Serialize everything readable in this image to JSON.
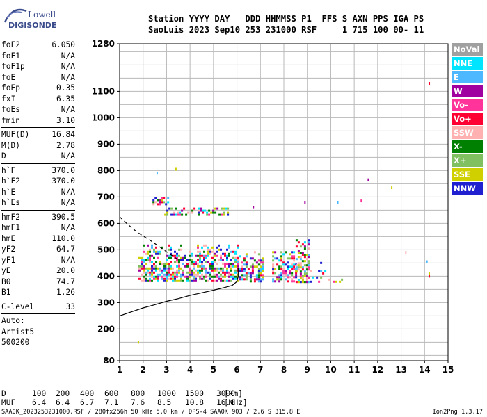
{
  "logo": {
    "line1": "Lowell",
    "line2": "DIGISONDE"
  },
  "header": {
    "line1": "Station YYYY DAY   DDD HHMMSS P1  FFS S AXN PPS IGA PS",
    "line2": "SaoLuis 2023 Sep10 253 231000 RSF     1 715 100 00- 11"
  },
  "params": {
    "group1": [
      {
        "name": "foF2",
        "value": "6.050"
      },
      {
        "name": "foF1",
        "value": "N/A"
      },
      {
        "name": "foF1p",
        "value": "N/A"
      },
      {
        "name": "foE",
        "value": "N/A"
      },
      {
        "name": "foEp",
        "value": "0.35"
      },
      {
        "name": "fxI",
        "value": "6.35"
      },
      {
        "name": "foEs",
        "value": "N/A"
      },
      {
        "name": "fmin",
        "value": "3.10"
      }
    ],
    "group2": [
      {
        "name": "MUF(D)",
        "value": "16.84"
      },
      {
        "name": "M(D)",
        "value": "2.78"
      },
      {
        "name": "D",
        "value": "N/A"
      }
    ],
    "group3": [
      {
        "name": "h`F",
        "value": "370.0"
      },
      {
        "name": "h`F2",
        "value": "370.0"
      },
      {
        "name": "h`E",
        "value": "N/A"
      },
      {
        "name": "h`Es",
        "value": "N/A"
      }
    ],
    "group4": [
      {
        "name": "hmF2",
        "value": "390.5"
      },
      {
        "name": "hmF1",
        "value": "N/A"
      },
      {
        "name": "hmE",
        "value": "110.0"
      },
      {
        "name": "yF2",
        "value": "64.7"
      },
      {
        "name": "yF1",
        "value": "N/A"
      },
      {
        "name": "yE",
        "value": "20.0"
      },
      {
        "name": "B0",
        "value": "74.7"
      },
      {
        "name": "B1",
        "value": "1.26"
      }
    ],
    "group5": [
      {
        "name": "C-level",
        "value": "33"
      }
    ],
    "auto": [
      "Auto:",
      "Artist5",
      "500200"
    ]
  },
  "legend": [
    {
      "label": "NoVal",
      "color": "#a0a0a0"
    },
    {
      "label": "NNE",
      "color": "#00e5ff"
    },
    {
      "label": "E",
      "color": "#4db8ff"
    },
    {
      "label": "W",
      "color": "#a000a0"
    },
    {
      "label": "Vo-",
      "color": "#ff3399"
    },
    {
      "label": "Vo+",
      "color": "#ff0033"
    },
    {
      "label": "SSW",
      "color": "#ffb0b0"
    },
    {
      "label": "X-",
      "color": "#008000"
    },
    {
      "label": "X+",
      "color": "#80c060"
    },
    {
      "label": "SSE",
      "color": "#d0d000"
    },
    {
      "label": "NNW",
      "color": "#2020d0"
    }
  ],
  "muf_table": {
    "d_label": "D",
    "d_values": [
      "100",
      "200",
      "400",
      "600",
      "800",
      "1000",
      "1500",
      "3000"
    ],
    "d_unit": "[km]",
    "muf_label": "MUF",
    "muf_values": [
      "6.4",
      "6.4",
      "6.7",
      "7.1",
      "7.6",
      "8.5",
      "10.8",
      "16.8"
    ],
    "muf_unit": "[MHz]"
  },
  "footer": "SAA0K_2023253231000.RSF / 280fx256h 50 kHz 5.0 km / DPS-4 SAA0K 903 / 2.6 S 315.8 E",
  "version": "Ion2Png 1.3.17",
  "chart_data": {
    "type": "scatter",
    "title": "",
    "xlabel": "",
    "ylabel": "",
    "xlim": [
      1,
      15
    ],
    "ylim": [
      80,
      1280
    ],
    "x_ticks": [
      1,
      2,
      3,
      4,
      5,
      6,
      7,
      8,
      9,
      10,
      11,
      12,
      13,
      14,
      15
    ],
    "y_ticks": [
      80,
      200,
      300,
      400,
      500,
      600,
      700,
      800,
      900,
      1000,
      1100,
      1280
    ],
    "grid": true,
    "legend_position": "right",
    "series": [
      {
        "kind": "echo-cluster",
        "x": [
          1.8,
          6.0
        ],
        "y": [
          380,
          520
        ],
        "color_mode": "mixed"
      },
      {
        "kind": "echo-cluster",
        "x": [
          6.1,
          7.1
        ],
        "y": [
          380,
          495
        ],
        "color_mode": "mixed"
      },
      {
        "kind": "echo-cluster",
        "x": [
          7.5,
          8.5
        ],
        "y": [
          380,
          495
        ],
        "color_mode": "mixed"
      },
      {
        "kind": "echo-cluster",
        "x": [
          8.5,
          9.1
        ],
        "y": [
          380,
          540
        ],
        "color_mode": "mixed"
      },
      {
        "kind": "echo-cluster",
        "x": [
          2.9,
          5.6
        ],
        "y": [
          630,
          660
        ],
        "color_mode": "mixed"
      },
      {
        "kind": "echo-cluster",
        "x": [
          2.4,
          3.1
        ],
        "y": [
          670,
          700
        ],
        "color_mode": "mixed"
      },
      {
        "kind": "echo-cluster",
        "x": [
          9.1,
          10.5
        ],
        "y": [
          380,
          470
        ],
        "color_mode": "sparse"
      }
    ],
    "isolated_points": [
      {
        "x": 14.2,
        "y": 1130,
        "color": "#ff0033"
      },
      {
        "x": 14.2,
        "y": 400,
        "color": "#ff0033"
      },
      {
        "x": 14.2,
        "y": 410,
        "color": "#d0d000"
      },
      {
        "x": 11.6,
        "y": 765,
        "color": "#a000a0"
      },
      {
        "x": 12.6,
        "y": 735,
        "color": "#d0d000"
      },
      {
        "x": 11.3,
        "y": 685,
        "color": "#ff3399"
      },
      {
        "x": 10.3,
        "y": 680,
        "color": "#4db8ff"
      },
      {
        "x": 8.9,
        "y": 680,
        "color": "#a000a0"
      },
      {
        "x": 6.7,
        "y": 660,
        "color": "#a000a0"
      },
      {
        "x": 3.4,
        "y": 805,
        "color": "#d0d000"
      },
      {
        "x": 2.6,
        "y": 790,
        "color": "#4db8ff"
      },
      {
        "x": 1.8,
        "y": 150,
        "color": "#d0d000"
      },
      {
        "x": 13.2,
        "y": 490,
        "color": "#ffb0b0"
      },
      {
        "x": 14.1,
        "y": 455,
        "color": "#4db8ff"
      }
    ],
    "profile_curve": {
      "name": "",
      "points": [
        [
          1.0,
          250
        ],
        [
          1.5,
          265
        ],
        [
          2.0,
          280
        ],
        [
          2.5,
          292
        ],
        [
          3.0,
          305
        ],
        [
          3.5,
          315
        ],
        [
          4.0,
          327
        ],
        [
          4.5,
          337
        ],
        [
          5.0,
          347
        ],
        [
          5.5,
          358
        ],
        [
          5.8,
          365
        ],
        [
          6.0,
          380
        ],
        [
          6.05,
          400
        ],
        [
          6.05,
          430
        ]
      ]
    },
    "dashed_curve": {
      "name": "",
      "points": [
        [
          1.0,
          625
        ],
        [
          1.3,
          600
        ],
        [
          1.7,
          570
        ],
        [
          2.0,
          552
        ],
        [
          2.4,
          530
        ],
        [
          2.8,
          505
        ],
        [
          3.2,
          480
        ],
        [
          3.5,
          463
        ]
      ]
    },
    "muf_curve_point": {
      "x": 6.05,
      "y": 430
    }
  }
}
